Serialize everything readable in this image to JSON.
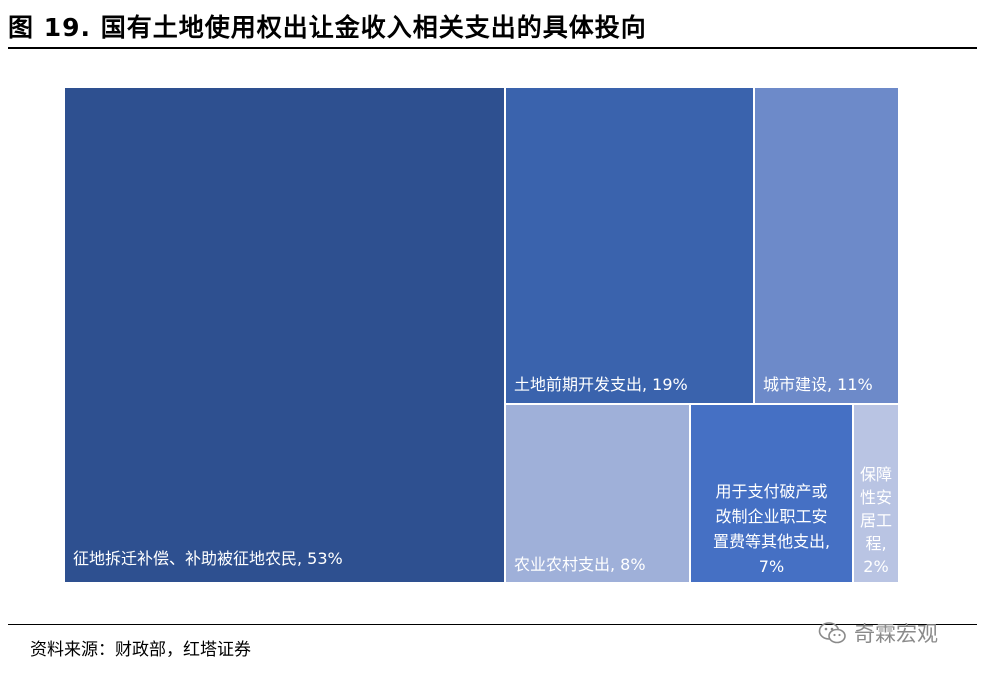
{
  "title": "图 19. 国有土地使用权出让金收入相关支出的具体投向",
  "source": "资料来源：财政部，红塔证券",
  "watermark": "奇霖宏观",
  "chart_data": {
    "type": "treemap",
    "items": [
      {
        "label": "征地拆迁补偿、补助被征地农民",
        "value_label": "53%",
        "value": 53,
        "color": "#2e5090"
      },
      {
        "label": "土地前期开发支出",
        "value_label": "19%",
        "value": 19,
        "color": "#3a63ad"
      },
      {
        "label": "城市建设",
        "value_label": "11%",
        "value": 11,
        "color": "#6d8ac9"
      },
      {
        "label": "农业农村支出",
        "value_label": "8%",
        "value": 8,
        "color": "#9fb0d9"
      },
      {
        "label": "用于支付破产或改制企业职工安置费等其他支出",
        "value_label": "7%",
        "value": 7,
        "color": "#4570c4"
      },
      {
        "label": "保障性安居工程",
        "value_label": "2%",
        "value": 2,
        "color": "#b9c4e3"
      }
    ]
  }
}
